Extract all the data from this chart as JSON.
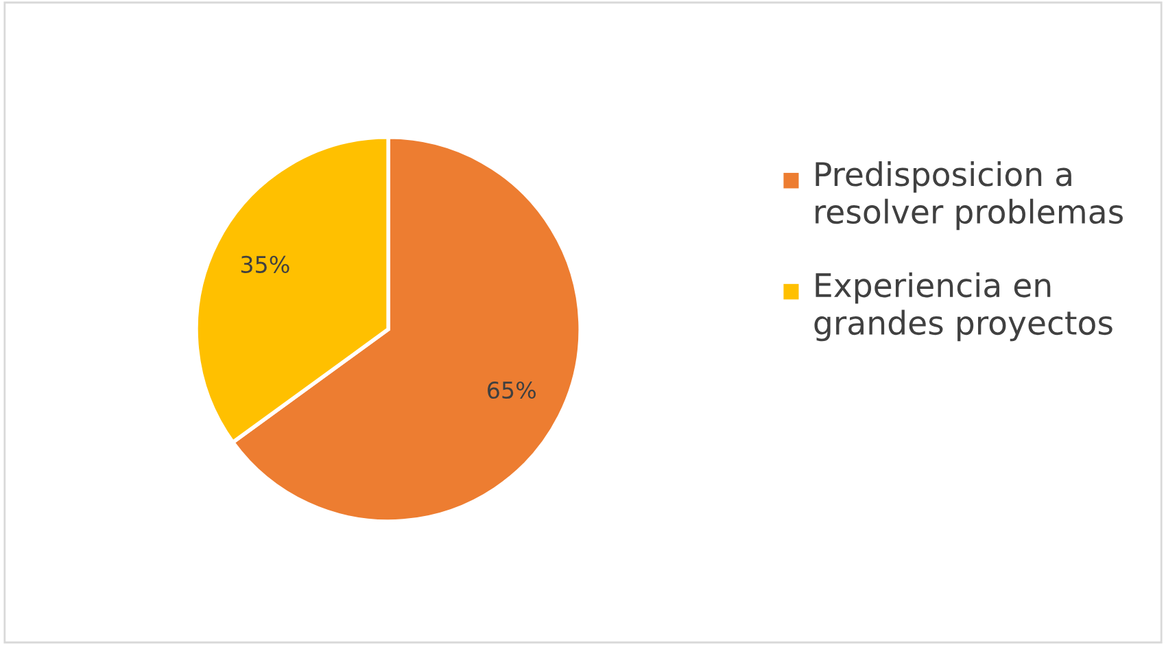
{
  "chart_data": {
    "type": "pie",
    "categories": [
      "Predisposicion a resolver problemas",
      "Experiencia en grandes proyectos"
    ],
    "values": [
      65,
      35
    ],
    "value_labels": [
      "65%",
      "35%"
    ],
    "colors": [
      "#ed7d31",
      "#ffc000"
    ],
    "legend": "right"
  }
}
